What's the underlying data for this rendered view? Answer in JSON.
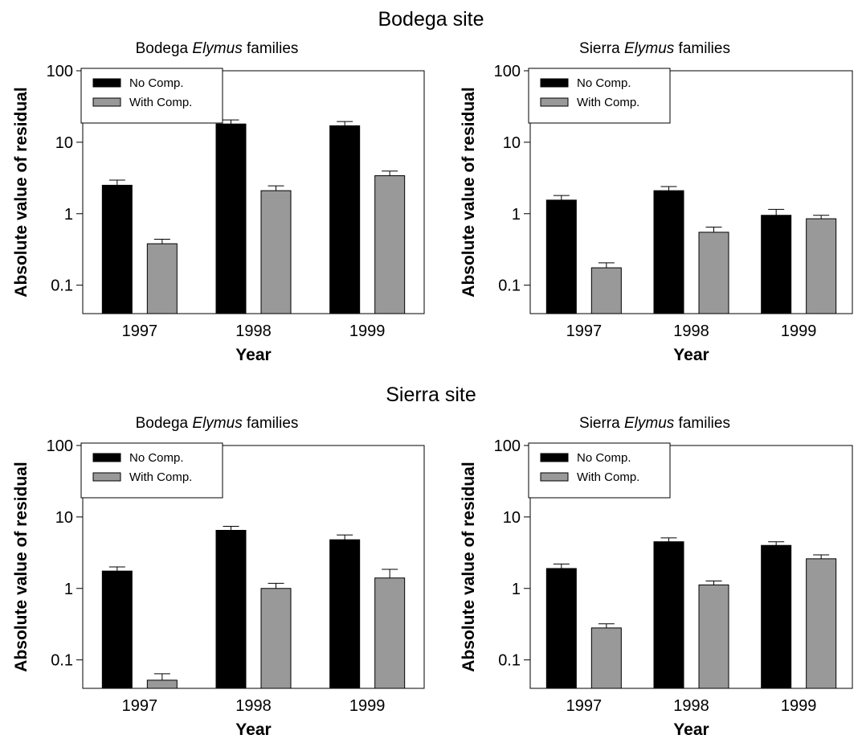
{
  "sites": [
    {
      "title": "Bodega site"
    },
    {
      "title": "Sierra site"
    }
  ],
  "chart_data": [
    {
      "type": "bar",
      "scale": "log",
      "title_pre": "Bodega ",
      "title_em": "Elymus",
      "title_post": " families",
      "xlabel": "Year",
      "ylabel": "Absolute value of residual",
      "categories": [
        "1997",
        "1998",
        "1999"
      ],
      "ylim": [
        0.04,
        100
      ],
      "yticks": [
        0.1,
        1,
        10,
        100
      ],
      "ytick_labels": [
        "0.1",
        "1",
        "10",
        "100"
      ],
      "legend_position": "top-left",
      "series": [
        {
          "name": "No Comp.",
          "color": "#000000",
          "values": [
            2.5,
            18,
            17
          ],
          "errors": [
            0.45,
            2.5,
            2.5
          ]
        },
        {
          "name": "With Comp.",
          "color": "#999999",
          "values": [
            0.38,
            2.1,
            3.4
          ],
          "errors": [
            0.06,
            0.35,
            0.55
          ]
        }
      ]
    },
    {
      "type": "bar",
      "scale": "log",
      "title_pre": "Sierra ",
      "title_em": "Elymus",
      "title_post": " families",
      "xlabel": "Year",
      "ylabel": "Absolute value of residual",
      "categories": [
        "1997",
        "1998",
        "1999"
      ],
      "ylim": [
        0.04,
        100
      ],
      "yticks": [
        0.1,
        1,
        10,
        100
      ],
      "ytick_labels": [
        "0.1",
        "1",
        "10",
        "100"
      ],
      "legend_position": "top-left",
      "series": [
        {
          "name": "No Comp.",
          "color": "#000000",
          "values": [
            1.55,
            2.1,
            0.95
          ],
          "errors": [
            0.25,
            0.3,
            0.2
          ]
        },
        {
          "name": "With Comp.",
          "color": "#999999",
          "values": [
            0.175,
            0.55,
            0.85
          ],
          "errors": [
            0.03,
            0.1,
            0.1
          ]
        }
      ]
    },
    {
      "type": "bar",
      "scale": "log",
      "title_pre": "Bodega ",
      "title_em": "Elymus",
      "title_post": " families",
      "xlabel": "Year",
      "ylabel": "Absolute value of residual",
      "categories": [
        "1997",
        "1998",
        "1999"
      ],
      "ylim": [
        0.04,
        100
      ],
      "yticks": [
        0.1,
        1,
        10,
        100
      ],
      "ytick_labels": [
        "0.1",
        "1",
        "10",
        "100"
      ],
      "legend_position": "top-left",
      "series": [
        {
          "name": "No Comp.",
          "color": "#000000",
          "values": [
            1.75,
            6.5,
            4.8
          ],
          "errors": [
            0.25,
            0.9,
            0.8
          ]
        },
        {
          "name": "With Comp.",
          "color": "#999999",
          "values": [
            0.052,
            1.0,
            1.4
          ],
          "errors": [
            0.012,
            0.18,
            0.45
          ]
        }
      ]
    },
    {
      "type": "bar",
      "scale": "log",
      "title_pre": "Sierra ",
      "title_em": "Elymus",
      "title_post": " families",
      "xlabel": "Year",
      "ylabel": "Absolute value of residual",
      "categories": [
        "1997",
        "1998",
        "1999"
      ],
      "ylim": [
        0.04,
        100
      ],
      "yticks": [
        0.1,
        1,
        10,
        100
      ],
      "ytick_labels": [
        "0.1",
        "1",
        "10",
        "100"
      ],
      "legend_position": "top-left",
      "series": [
        {
          "name": "No Comp.",
          "color": "#000000",
          "values": [
            1.9,
            4.5,
            4.0
          ],
          "errors": [
            0.3,
            0.6,
            0.5
          ]
        },
        {
          "name": "With Comp.",
          "color": "#999999",
          "values": [
            0.28,
            1.12,
            2.6
          ],
          "errors": [
            0.04,
            0.15,
            0.35
          ]
        }
      ]
    }
  ]
}
